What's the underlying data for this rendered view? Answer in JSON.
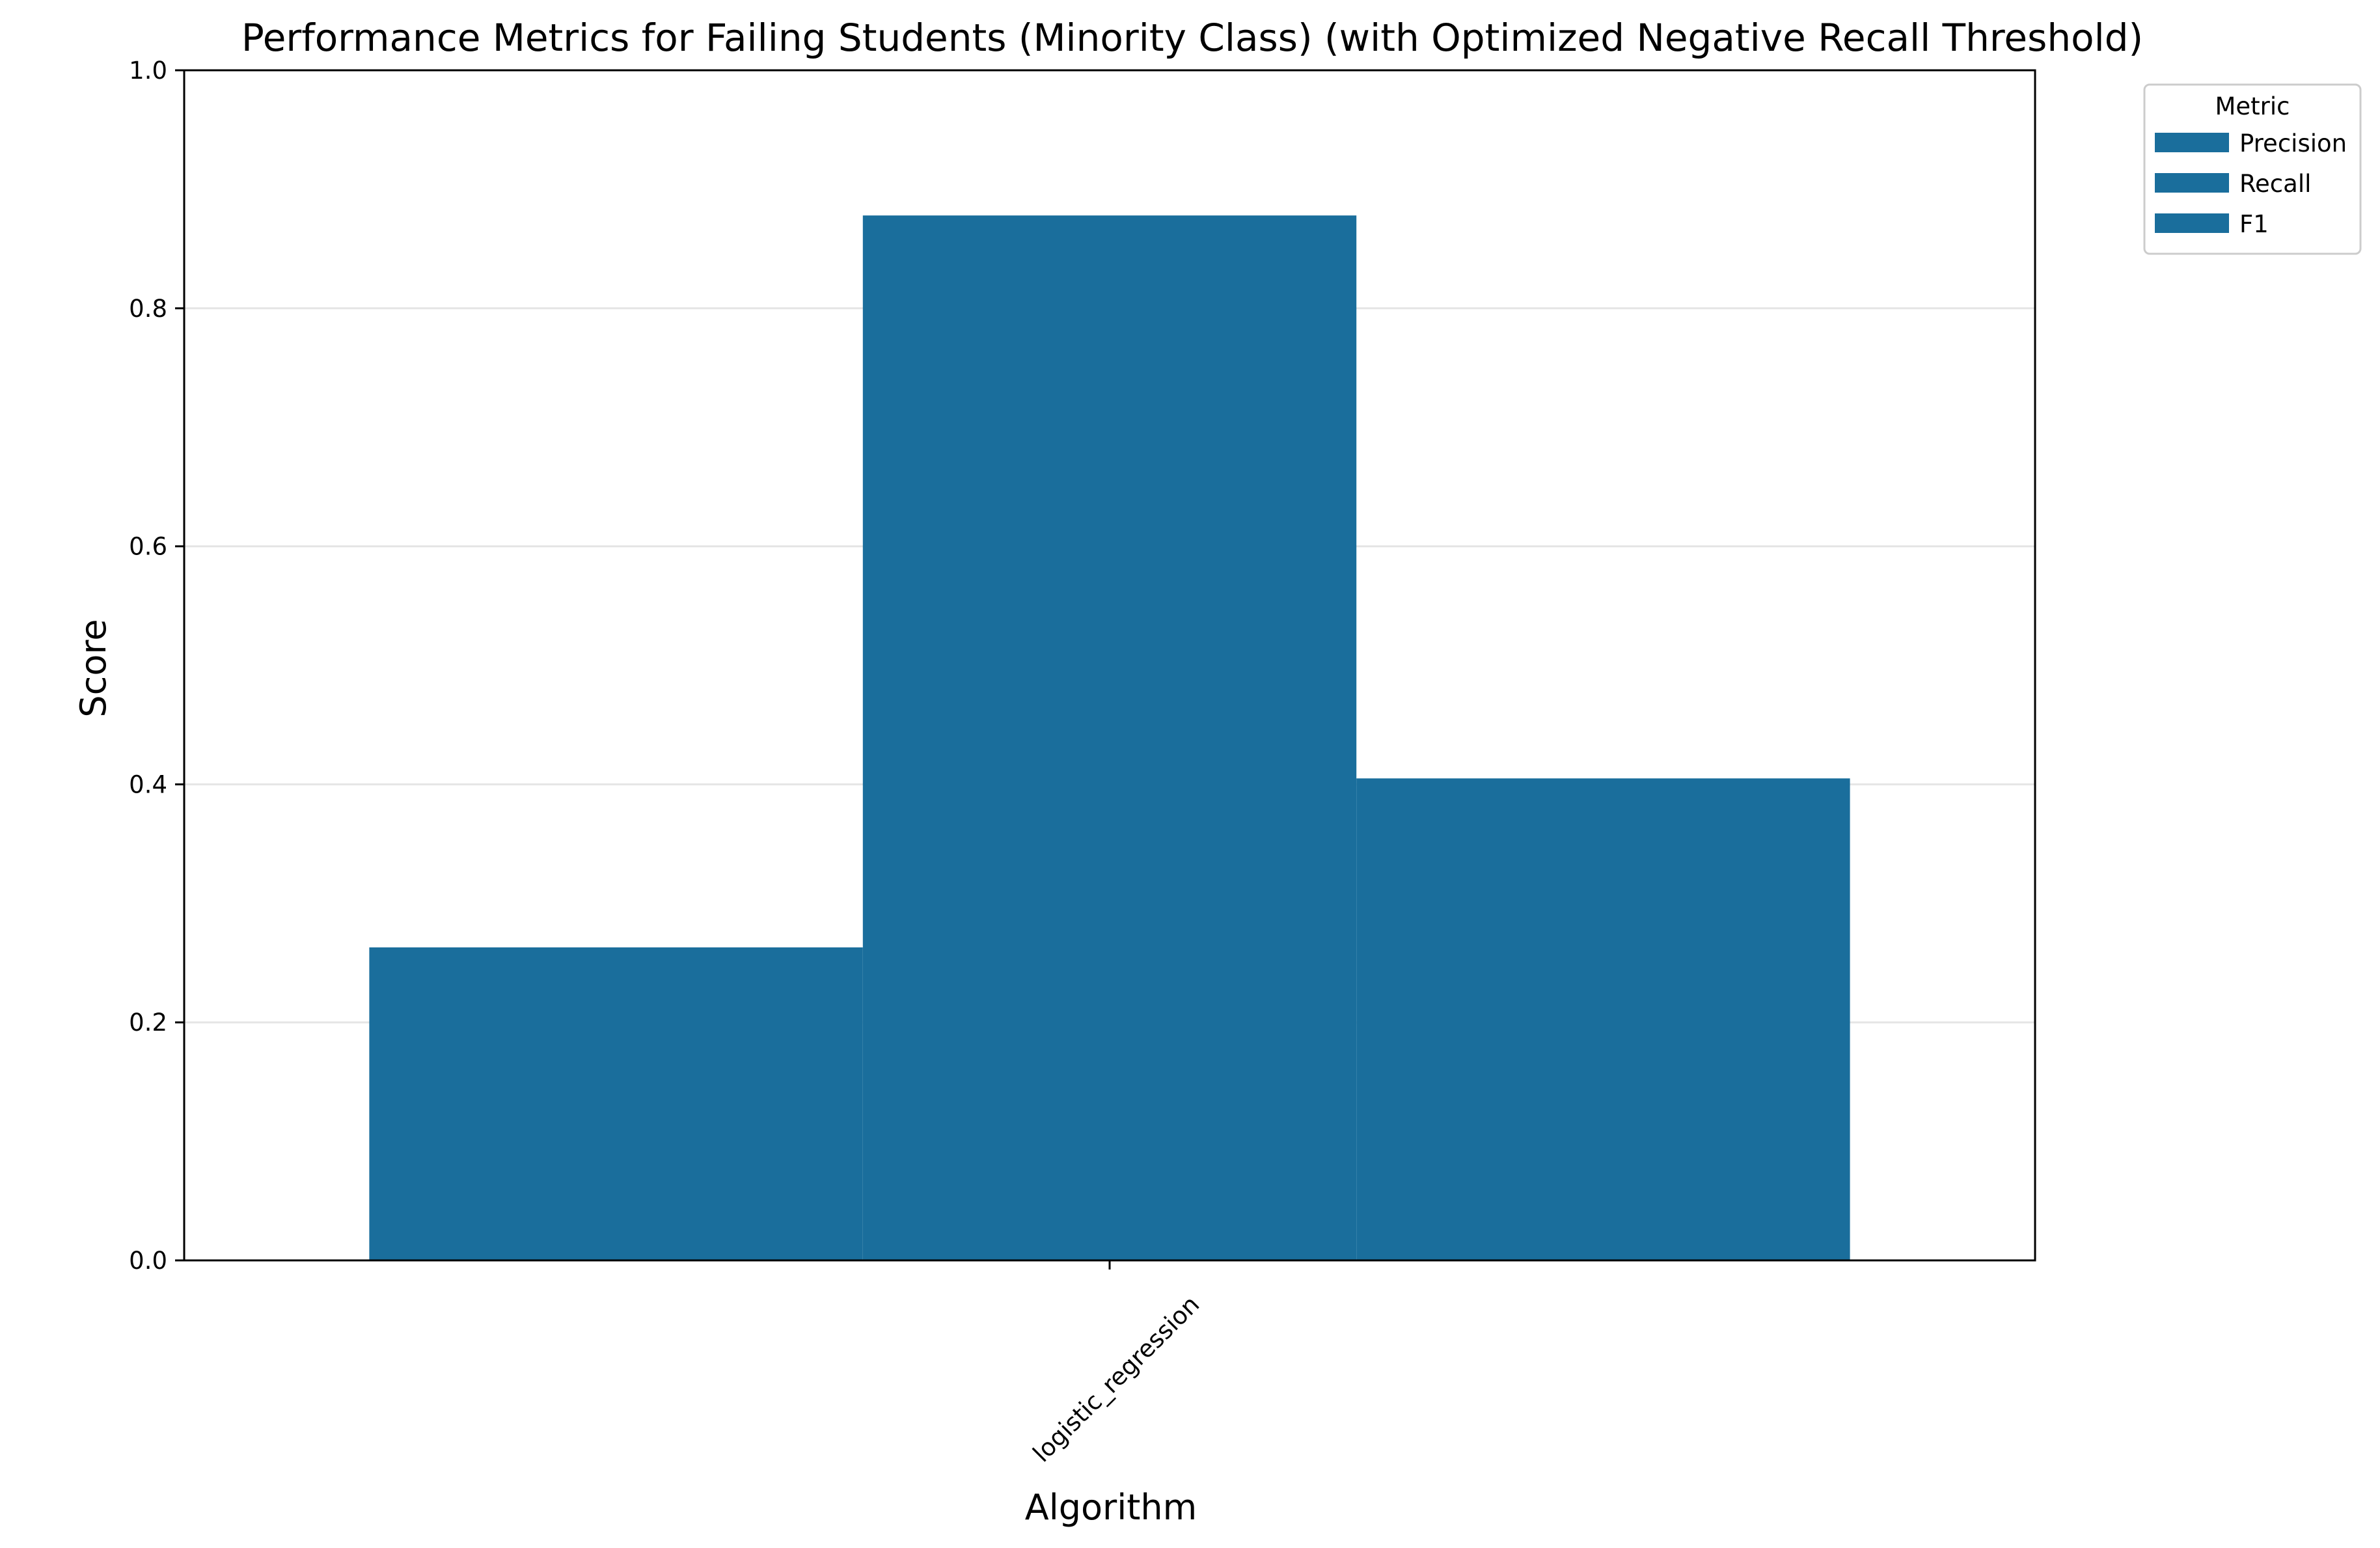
{
  "chart_data": {
    "type": "bar",
    "title": "Performance Metrics for Failing Students (Minority Class) (with Optimized Negative Recall Threshold)",
    "xlabel": "Algorithm",
    "ylabel": "Score",
    "categories": [
      "logistic_regression"
    ],
    "series": [
      {
        "name": "Precision",
        "values": [
          0.263
        ],
        "color": "#1a6e9c"
      },
      {
        "name": "Recall",
        "values": [
          0.878
        ],
        "color": "#1a6e9c"
      },
      {
        "name": "F1",
        "values": [
          0.405
        ],
        "color": "#1a6e9c"
      }
    ],
    "ylim": [
      0,
      1.0
    ],
    "yticks": [
      "0.0",
      "0.2",
      "0.4",
      "0.6",
      "0.8",
      "1.0"
    ],
    "grid": "horizontal",
    "legend": {
      "title": "Metric",
      "placement": "outside top-right"
    },
    "colors": {
      "bar": "#1a6e9c",
      "grid": "#e5e5e5",
      "axis": "#000000"
    }
  }
}
